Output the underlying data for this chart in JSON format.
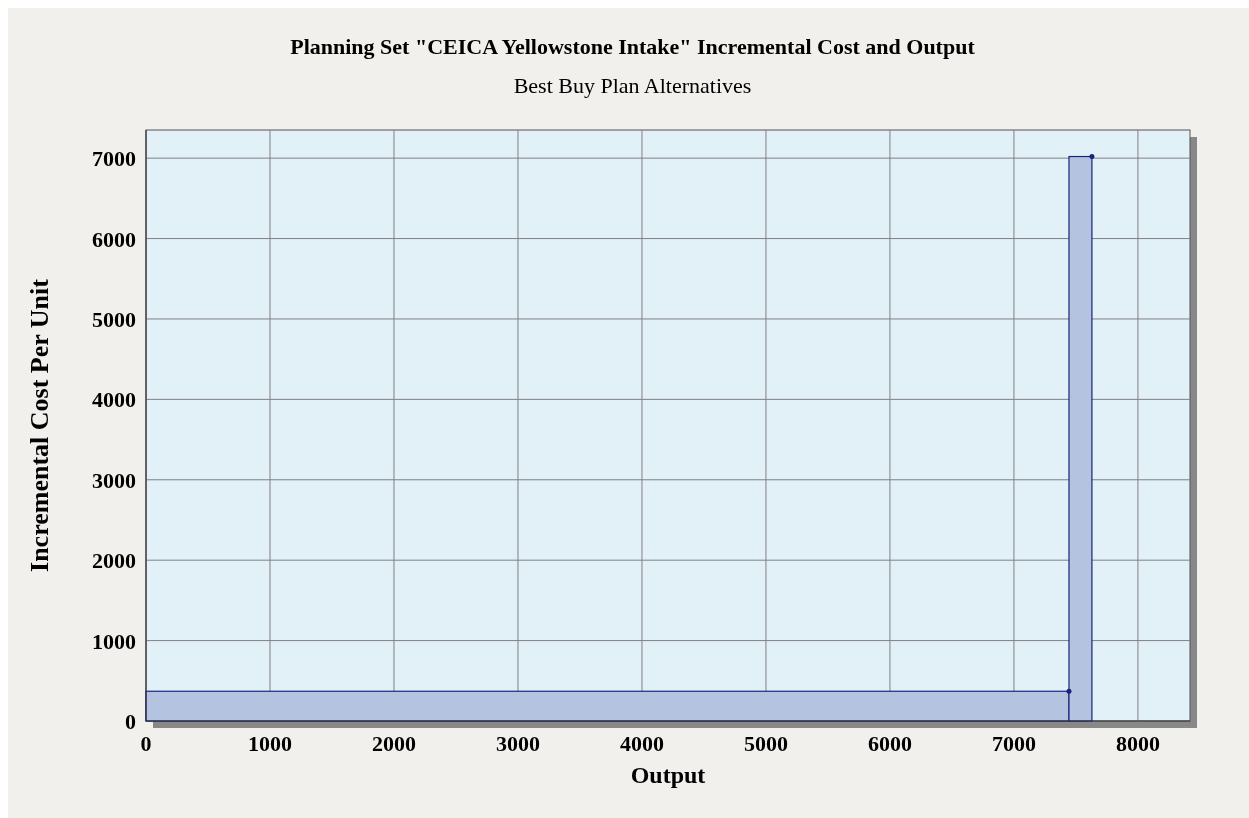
{
  "chart_data": {
    "type": "histogram",
    "title": "Planning Set \"CEICA Yellowstone Intake\" Incremental Cost and Output",
    "subtitle": "Best Buy Plan Alternatives",
    "xlabel": "Output",
    "ylabel": "Incremental Cost Per Unit",
    "bins": [
      0,
      7444,
      7629
    ],
    "values": [
      370,
      7020
    ],
    "color": "#b4c4e0",
    "marker": "circle",
    "xlim": [
      0,
      8420
    ],
    "xticks": [
      0,
      1000,
      2000,
      3000,
      4000,
      5000,
      6000,
      7000,
      8000
    ],
    "ylim": [
      0,
      7350
    ],
    "yticks": [
      0,
      1000,
      2000,
      3000,
      4000,
      5000,
      6000,
      7000
    ],
    "grid": true
  }
}
